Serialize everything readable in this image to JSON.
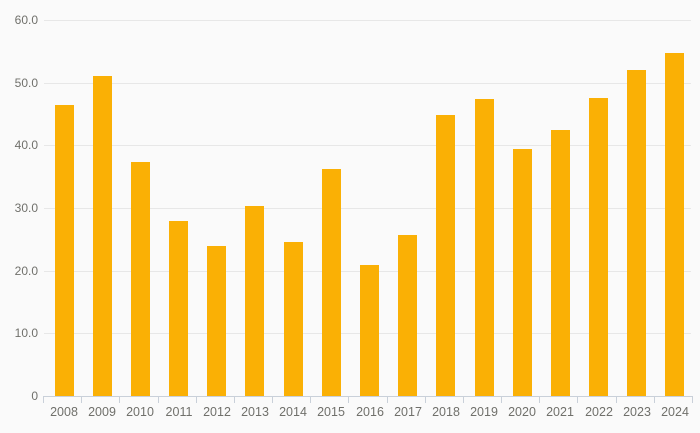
{
  "chart_data": {
    "type": "bar",
    "title": "",
    "xlabel": "",
    "ylabel": "",
    "legend": "none",
    "grid": "horizontal",
    "background_color": "#fafafa",
    "bar_color": "#fab005",
    "gridline_color": "#e7e7e7",
    "axis_color": "#c9d0d9",
    "label_color": "#70706b",
    "ylim": [
      0,
      60
    ],
    "yticks": [
      {
        "value": 0,
        "label": "0"
      },
      {
        "value": 10,
        "label": "10.0"
      },
      {
        "value": 20,
        "label": "20.0"
      },
      {
        "value": 30,
        "label": "30.0"
      },
      {
        "value": 40,
        "label": "40.0"
      },
      {
        "value": 50,
        "label": "50.0"
      },
      {
        "value": 60,
        "label": "60.0"
      }
    ],
    "categories": [
      "2008",
      "2009",
      "2010",
      "2011",
      "2012",
      "2013",
      "2014",
      "2015",
      "2016",
      "2017",
      "2018",
      "2019",
      "2020",
      "2021",
      "2022",
      "2023",
      "2024"
    ],
    "values": [
      46.4,
      51.0,
      37.3,
      28.0,
      24.0,
      30.3,
      24.5,
      36.3,
      20.9,
      25.7,
      44.9,
      47.4,
      39.4,
      42.5,
      47.5,
      52.0,
      54.8
    ]
  }
}
